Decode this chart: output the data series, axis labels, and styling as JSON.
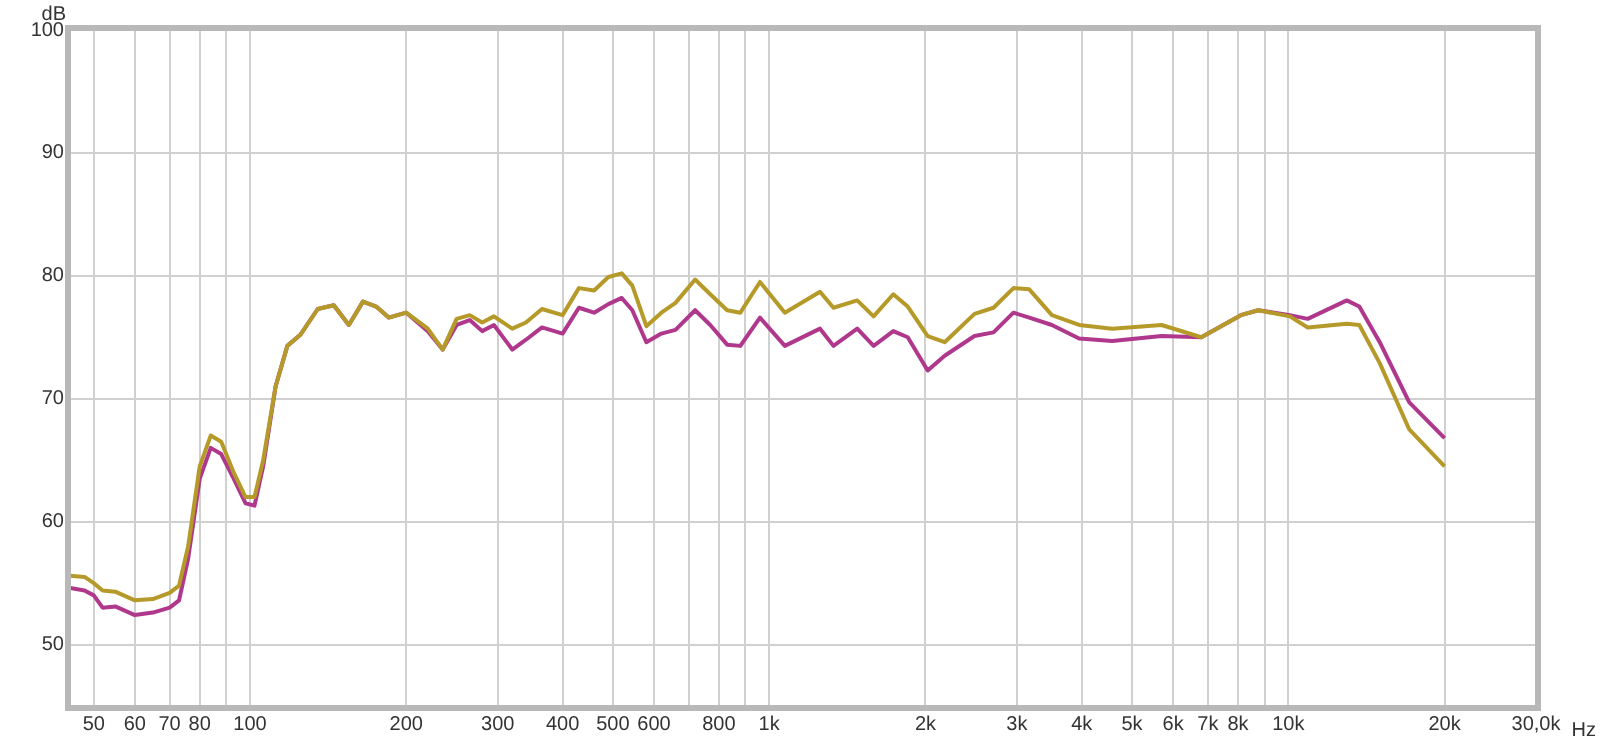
{
  "chart_data": {
    "type": "line",
    "xlabel": "Hz",
    "ylabel": "dB",
    "log": "x",
    "grid": true,
    "legend": false,
    "marker": "none",
    "line_style": "solid",
    "xlim": [
      45,
      30000
    ],
    "ylim": [
      45,
      100
    ],
    "xticks": [
      50,
      60,
      70,
      80,
      {
        "value": 90,
        "label": null
      },
      100,
      200,
      300,
      400,
      500,
      600,
      {
        "value": 700,
        "label": null
      },
      800,
      {
        "value": 900,
        "label": null
      },
      {
        "value": 1000,
        "label": "1k"
      },
      {
        "value": 2000,
        "label": "2k"
      },
      {
        "value": 3000,
        "label": "3k"
      },
      {
        "value": 4000,
        "label": "4k"
      },
      {
        "value": 5000,
        "label": "5k"
      },
      {
        "value": 6000,
        "label": "6k"
      },
      {
        "value": 7000,
        "label": "7k"
      },
      {
        "value": 8000,
        "label": "8k"
      },
      {
        "value": 9000,
        "label": null
      },
      {
        "value": 10000,
        "label": "10k"
      },
      {
        "value": 20000,
        "label": "20k"
      },
      {
        "value": 30000,
        "label": "30,0k"
      }
    ],
    "yticks": [
      50,
      60,
      70,
      80,
      90,
      100
    ],
    "x": [
      45,
      48,
      50,
      52,
      55,
      60,
      65,
      70,
      73,
      76,
      80,
      84,
      88,
      93,
      98,
      102,
      106,
      112,
      118,
      125,
      135,
      145,
      155,
      165,
      175,
      185,
      200,
      220,
      235,
      250,
      265,
      280,
      295,
      320,
      340,
      365,
      400,
      430,
      460,
      490,
      520,
      545,
      580,
      620,
      660,
      720,
      770,
      830,
      880,
      960,
      1072,
      1253,
      1330,
      1478,
      1589,
      1734,
      1849,
      2020,
      2178,
      2486,
      2705,
      2955,
      3170,
      3504,
      3954,
      4580,
      5700,
      6800,
      8100,
      8750,
      10070,
      10900,
      12960,
      13700,
      15000,
      17100,
      20000
    ],
    "series": [
      {
        "color": "#b59a2a",
        "values": [
          55.6,
          55.5,
          55,
          54.4,
          54.3,
          53.6,
          53.7,
          54.2,
          54.8,
          58,
          64.5,
          67,
          66.5,
          64,
          62,
          62,
          65,
          71,
          74.3,
          75.2,
          77.3,
          77.6,
          76,
          77.9,
          77.5,
          76.6,
          77,
          75.7,
          74,
          76.5,
          76.8,
          76.2,
          76.7,
          75.7,
          76.2,
          77.3,
          76.8,
          79,
          78.8,
          79.9,
          80.2,
          79.2,
          75.9,
          77,
          77.8,
          79.7,
          78.5,
          77.2,
          77,
          79.5,
          77,
          78.7,
          77.4,
          78,
          76.7,
          78.5,
          77.5,
          75.1,
          74.6,
          76.9,
          77.4,
          79,
          78.9,
          76.8,
          76,
          75.7,
          76,
          75,
          76.8,
          77.2,
          76.7,
          75.8,
          76.1,
          76,
          72.9,
          67.5,
          64.5
        ]
      },
      {
        "color": "#b0388c",
        "values": [
          54.6,
          54.4,
          54,
          53,
          53.1,
          52.4,
          52.6,
          53,
          53.6,
          57,
          63.5,
          66,
          65.5,
          63.5,
          61.5,
          61.3,
          64.5,
          71,
          74.3,
          75.2,
          77.3,
          77.6,
          76,
          77.9,
          77.5,
          76.6,
          77,
          75.5,
          74,
          76,
          76.4,
          75.5,
          76,
          74,
          74.8,
          75.8,
          75.3,
          77.4,
          77,
          77.7,
          78.2,
          77.2,
          74.6,
          75.3,
          75.6,
          77.2,
          76,
          74.4,
          74.3,
          76.6,
          74.3,
          75.7,
          74.3,
          75.7,
          74.3,
          75.5,
          75,
          72.3,
          73.5,
          75.1,
          75.4,
          77,
          76.6,
          76,
          74.9,
          74.7,
          75.1,
          75,
          76.8,
          77.2,
          76.8,
          76.5,
          78,
          77.5,
          74.6,
          69.7,
          66.8
        ]
      }
    ]
  }
}
